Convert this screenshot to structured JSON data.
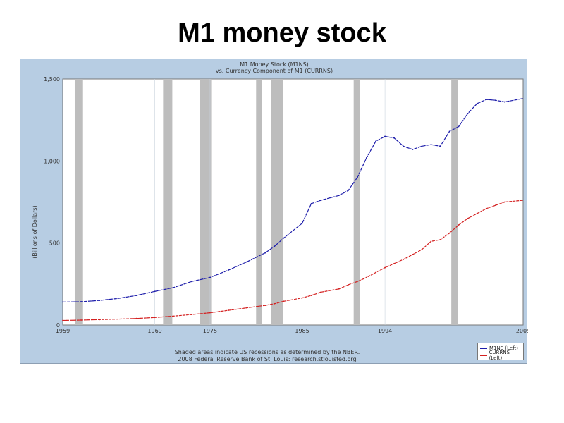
{
  "slide": {
    "title": "M1 money stock"
  },
  "colors": {
    "m1": "#1c1caa",
    "currency": "#d42020",
    "recession": "#bdbdbd",
    "plot_bg": "#ffffff",
    "frame_bg": "#b7cde3",
    "grid": "#c9d3dd"
  },
  "chart_data": {
    "type": "line",
    "title": "M1 Money Stock (M1NS)",
    "subtitle": "vs. Currency Component of M1 (CURRNS)",
    "ylabel": "(Billions of Dollars)",
    "xlabel": "",
    "xlim": [
      1959,
      2009
    ],
    "ylim": [
      0,
      1500
    ],
    "x_ticks": [
      "1959",
      "1969",
      "1975",
      "1985",
      "1994",
      "2009"
    ],
    "y_ticks": [
      "0",
      "500",
      "1,000",
      "1,500"
    ],
    "grid": true,
    "legend_position": "bottom-right",
    "recessions": [
      [
        1960.3,
        1961.2
      ],
      [
        1969.9,
        1970.9
      ],
      [
        1973.9,
        1975.2
      ],
      [
        1980.0,
        1980.6
      ],
      [
        1981.6,
        1982.9
      ],
      [
        1990.6,
        1991.3
      ],
      [
        2001.2,
        2001.9
      ]
    ],
    "x": [
      1959,
      1961,
      1963,
      1965,
      1967,
      1969,
      1971,
      1973,
      1975,
      1977,
      1979,
      1981,
      1982,
      1983,
      1985,
      1986,
      1987,
      1989,
      1990,
      1991,
      1992,
      1993,
      1994,
      1995,
      1996,
      1997,
      1998,
      1999,
      2000,
      2001,
      2002,
      2003,
      2004,
      2005,
      2006,
      2007,
      2008.9
    ],
    "series": [
      {
        "name": "M1NS (Left)",
        "color": "#1c1caa",
        "values": [
          140,
          142,
          150,
          162,
          180,
          205,
          228,
          265,
          290,
          335,
          385,
          440,
          480,
          530,
          620,
          740,
          760,
          790,
          820,
          900,
          1020,
          1120,
          1150,
          1140,
          1090,
          1070,
          1090,
          1100,
          1090,
          1180,
          1210,
          1290,
          1350,
          1375,
          1370,
          1360,
          1380
        ]
      },
      {
        "name": "CURRNS (Left)",
        "color": "#d42020",
        "values": [
          28,
          30,
          33,
          36,
          40,
          46,
          54,
          64,
          75,
          90,
          105,
          120,
          130,
          145,
          165,
          180,
          200,
          220,
          245,
          265,
          290,
          320,
          350,
          375,
          400,
          430,
          460,
          510,
          520,
          560,
          610,
          650,
          680,
          710,
          730,
          750,
          760
        ]
      }
    ]
  },
  "footnote": {
    "line1": "Shaded areas indicate US recessions as determined by the NBER.",
    "line2": "2008 Federal Reserve Bank of St. Louis: research.stlouisfed.org"
  }
}
